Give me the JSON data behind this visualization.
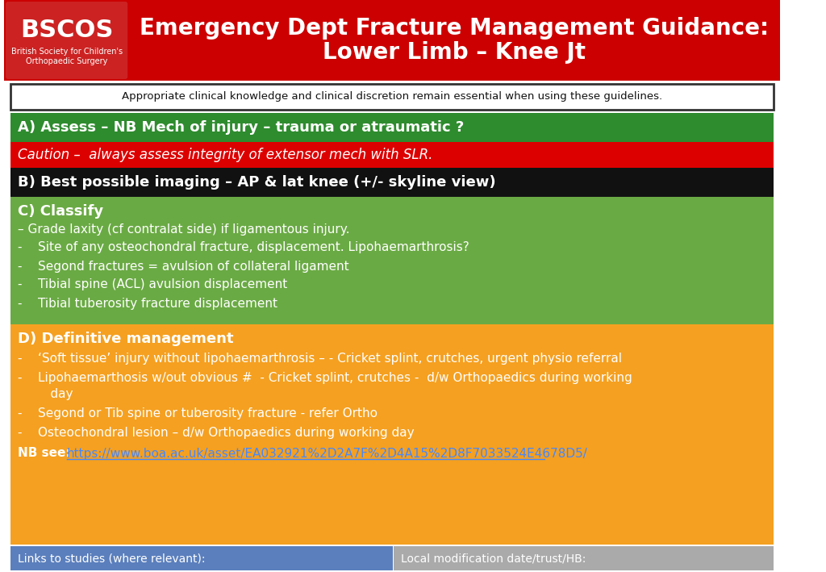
{
  "title_line1": "Emergency Dept Fracture Management Guidance:",
  "title_line2": "Lower Limb – Knee Jt",
  "logo_text1": "BSCOS",
  "logo_text2": "British Society for Children's",
  "logo_text3": "Orthopaedic Surgery",
  "disclaimer": "Appropriate clinical knowledge and clinical discretion remain essential when using these guidelines.",
  "section_a": "A) Assess – NB Mech of injury – trauma or atraumatic ?",
  "section_caution": "Caution –  always assess integrity of extensor mech with SLR.",
  "section_b": "B) Best possible imaging – AP & lat knee (+/- skyline view)",
  "section_c_title": "C) Classify",
  "section_c_lines": [
    "– Grade laxity (cf contralat side) if ligamentous injury.",
    "-    Site of any osteochondral fracture, displacement. Lipohaemarthrosis?",
    "-    Segond fractures = avulsion of collateral ligament",
    "-    Tibial spine (ACL) avulsion displacement",
    "-    Tibial tuberosity fracture displacement"
  ],
  "section_d_title": "D) Definitive management",
  "section_d_line1": "-    ‘Soft tissue’ injury without lipohaemarthrosis – - Cricket splint, crutches, urgent physio referral",
  "section_d_line2a": "-    Lipohaemarthosis w/out obvious #  - Cricket splint, crutches -  d/w Orthopaedics during working",
  "section_d_line2b": "     day",
  "section_d_line3": "-    Segond or Tib spine or tuberosity fracture - refer Ortho",
  "section_d_line4": "-    Osteochondral lesion – d/w Orthopaedics during working day",
  "nb_text": "NB see: ",
  "nb_link": "https://www.boa.ac.uk/asset/EA032921%2D2A7F%2D4A15%2D8F7033524E4678D5/",
  "footer_left": "Links to studies (where relevant):",
  "footer_right": "Local modification date/trust/HB:",
  "color_header_bg": "#cc0000",
  "color_logo_bg": "#cc2222",
  "color_green": "#2e8b2e",
  "color_red": "#dd0000",
  "color_black": "#111111",
  "color_olive_green": "#6aaa44",
  "color_orange": "#f5a020",
  "color_footer_left": "#5b7fbd",
  "color_footer_right": "#aaaaaa",
  "color_white": "#ffffff",
  "color_disclaimer_bg": "#ffffff",
  "color_disclaimer_border": "#333333",
  "color_link": "#4488ff"
}
